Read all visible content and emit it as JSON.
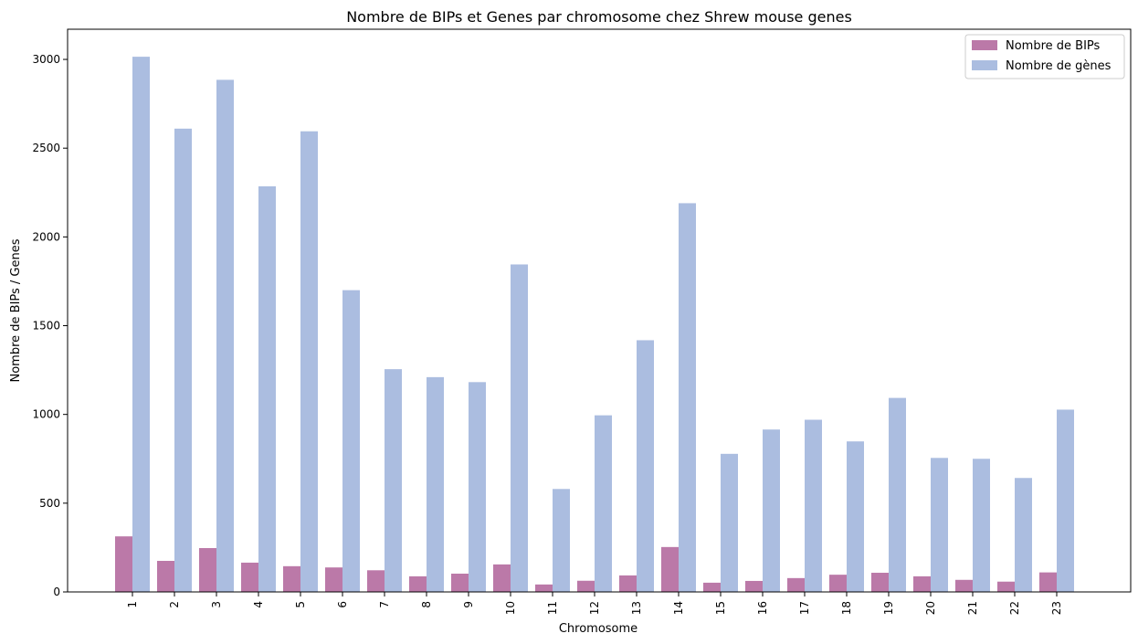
{
  "chart_data": {
    "type": "bar",
    "title": "Nombre de BIPs et Genes par chromosome chez Shrew mouse genes",
    "xlabel": "Chromosome",
    "ylabel": "Nombre de BIPs / Genes",
    "ylim": [
      0,
      3170
    ],
    "yticks": [
      0,
      500,
      1000,
      1500,
      2000,
      2500,
      3000
    ],
    "categories": [
      "1",
      "2",
      "3",
      "4",
      "5",
      "6",
      "7",
      "8",
      "9",
      "10",
      "11",
      "12",
      "13",
      "14",
      "15",
      "16",
      "17",
      "18",
      "19",
      "20",
      "21",
      "22",
      "23"
    ],
    "legend_position": "top-right",
    "grid": false,
    "series": [
      {
        "name": "Nombre de BIPs",
        "color": "#bb79a8",
        "values": [
          313,
          175,
          247,
          165,
          145,
          138,
          122,
          88,
          103,
          155,
          42,
          63,
          93,
          253,
          52,
          62,
          78,
          97,
          108,
          88,
          68,
          58,
          110
        ]
      },
      {
        "name": "Nombre de gènes",
        "color": "#abbde0",
        "values": [
          3015,
          2610,
          2885,
          2285,
          2595,
          1700,
          1255,
          1210,
          1182,
          1845,
          580,
          995,
          1418,
          2190,
          778,
          915,
          970,
          848,
          1093,
          755,
          750,
          642,
          1027
        ]
      }
    ]
  }
}
